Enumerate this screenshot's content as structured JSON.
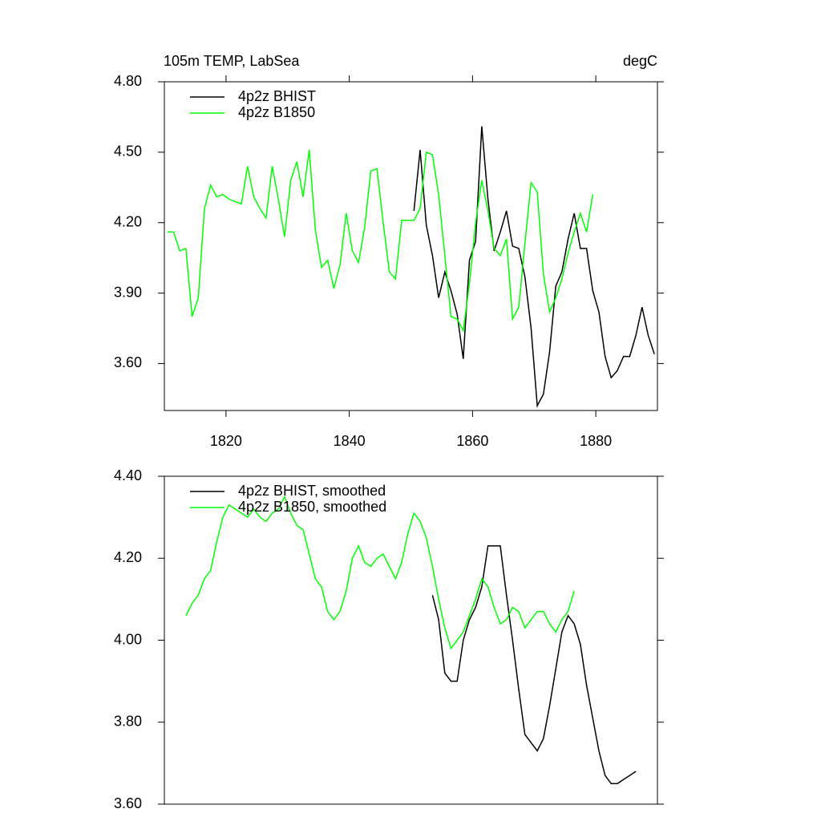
{
  "chart_data": [
    {
      "type": "line",
      "title": "105m TEMP, LabSea",
      "subtitle": "degC",
      "xlim": [
        1810,
        1890
      ],
      "xticks": [
        1820,
        1840,
        1860,
        1880
      ],
      "ylim": [
        3.4,
        4.8
      ],
      "yticks": [
        {
          "value": 4.8,
          "label": "4.80"
        },
        {
          "value": 4.5,
          "label": "4.50"
        },
        {
          "value": 4.2,
          "label": "4.20"
        },
        {
          "value": 3.9,
          "label": "3.90"
        },
        {
          "value": 3.6,
          "label": "3.60"
        }
      ],
      "legend": "upper left",
      "series": [
        {
          "name": "4p2z BHIST",
          "color": "#000000",
          "x": [
            1850.5,
            1851.5,
            1852.5,
            1853.5,
            1854.5,
            1855.5,
            1856.5,
            1857.5,
            1858.5,
            1859.5,
            1860.5,
            1861.5,
            1862.5,
            1863.5,
            1864.5,
            1865.5,
            1866.5,
            1867.5,
            1868.5,
            1869.5,
            1870.5,
            1871.5,
            1872.5,
            1873.5,
            1874.5,
            1875.5,
            1876.5,
            1877.5,
            1878.5,
            1879.5,
            1880.5,
            1881.5,
            1882.5,
            1883.5,
            1884.5,
            1885.5,
            1886.5,
            1887.5,
            1888.5,
            1889.5
          ],
          "values": [
            4.25,
            4.51,
            4.19,
            4.06,
            3.88,
            3.99,
            3.91,
            3.81,
            3.62,
            4.04,
            4.12,
            4.61,
            4.3,
            4.08,
            4.16,
            4.25,
            4.1,
            4.09,
            3.97,
            3.75,
            3.42,
            3.47,
            3.65,
            3.93,
            3.99,
            4.13,
            4.24,
            4.09,
            4.09,
            3.91,
            3.82,
            3.63,
            3.54,
            3.57,
            3.63,
            3.63,
            3.72,
            3.84,
            3.72,
            3.64
          ]
        },
        {
          "name": "4p2z B1850",
          "color": "#00ff00",
          "x": [
            1810.5,
            1811.5,
            1812.5,
            1813.5,
            1814.5,
            1815.5,
            1816.5,
            1817.5,
            1818.5,
            1819.5,
            1820.5,
            1821.5,
            1822.5,
            1823.5,
            1824.5,
            1825.5,
            1826.5,
            1827.5,
            1828.5,
            1829.5,
            1830.5,
            1831.5,
            1832.5,
            1833.5,
            1834.5,
            1835.5,
            1836.5,
            1837.5,
            1838.5,
            1839.5,
            1840.5,
            1841.5,
            1842.5,
            1843.5,
            1844.5,
            1845.5,
            1846.5,
            1847.5,
            1848.5,
            1849.5,
            1850.5,
            1851.5,
            1852.5,
            1853.5,
            1854.5,
            1855.5,
            1856.5,
            1857.5,
            1858.5,
            1859.5,
            1860.5,
            1861.5,
            1862.5,
            1863.5,
            1864.5,
            1865.5,
            1866.5,
            1867.5,
            1868.5,
            1869.5,
            1870.5,
            1871.5,
            1872.5,
            1873.5,
            1874.5,
            1875.5,
            1876.5,
            1877.5,
            1878.5,
            1879.5
          ],
          "values": [
            4.16,
            4.16,
            4.08,
            4.09,
            3.8,
            3.88,
            4.26,
            4.36,
            4.31,
            4.32,
            4.3,
            4.29,
            4.28,
            4.44,
            4.31,
            4.26,
            4.22,
            4.44,
            4.3,
            4.14,
            4.38,
            4.46,
            4.31,
            4.51,
            4.17,
            4.01,
            4.04,
            3.92,
            4.02,
            4.24,
            4.08,
            4.03,
            4.18,
            4.42,
            4.43,
            4.2,
            3.99,
            3.96,
            4.21,
            4.21,
            4.21,
            4.26,
            4.5,
            4.49,
            4.32,
            4.06,
            3.8,
            3.79,
            3.74,
            3.94,
            4.2,
            4.38,
            4.25,
            4.09,
            4.06,
            4.13,
            3.79,
            3.84,
            4.11,
            4.37,
            4.33,
            3.98,
            3.82,
            3.88,
            3.96,
            4.07,
            4.16,
            4.24,
            4.16,
            4.32
          ]
        }
      ]
    },
    {
      "type": "line",
      "xlim": [
        1810,
        1890
      ],
      "ylim": [
        3.6,
        4.4
      ],
      "yticks": [
        {
          "value": 4.4,
          "label": "4.40"
        },
        {
          "value": 4.2,
          "label": "4.20"
        },
        {
          "value": 4.0,
          "label": "4.00"
        },
        {
          "value": 3.8,
          "label": "3.80"
        },
        {
          "value": 3.6,
          "label": "3.60"
        }
      ],
      "legend": "upper left",
      "series": [
        {
          "name": "4p2z BHIST, smoothed",
          "color": "#000000",
          "x": [
            1853.5,
            1854.5,
            1855.5,
            1856.5,
            1857.5,
            1858.5,
            1859.5,
            1860.5,
            1861.5,
            1862.5,
            1863.5,
            1864.5,
            1865.5,
            1866.5,
            1867.5,
            1868.5,
            1869.5,
            1870.5,
            1871.5,
            1872.5,
            1873.5,
            1874.5,
            1875.5,
            1876.5,
            1877.5,
            1878.5,
            1879.5,
            1880.5,
            1881.5,
            1882.5,
            1883.5,
            1884.5,
            1885.5,
            1886.5
          ],
          "values": [
            4.11,
            4.05,
            3.92,
            3.9,
            3.9,
            4.0,
            4.05,
            4.08,
            4.13,
            4.23,
            4.23,
            4.23,
            4.11,
            4.0,
            3.88,
            3.77,
            3.75,
            3.73,
            3.76,
            3.84,
            3.93,
            4.02,
            4.06,
            4.04,
            3.99,
            3.89,
            3.81,
            3.73,
            3.67,
            3.65,
            3.65,
            3.66,
            3.67,
            3.68
          ]
        },
        {
          "name": "4p2z B1850, smoothed",
          "color": "#00ff00",
          "x": [
            1813.5,
            1814.5,
            1815.5,
            1816.5,
            1817.5,
            1818.5,
            1819.5,
            1820.5,
            1821.5,
            1822.5,
            1823.5,
            1824.5,
            1825.5,
            1826.5,
            1827.5,
            1828.5,
            1829.5,
            1830.5,
            1831.5,
            1832.5,
            1833.5,
            1834.5,
            1835.5,
            1836.5,
            1837.5,
            1838.5,
            1839.5,
            1840.5,
            1841.5,
            1842.5,
            1843.5,
            1844.5,
            1845.5,
            1846.5,
            1847.5,
            1848.5,
            1849.5,
            1850.5,
            1851.5,
            1852.5,
            1853.5,
            1854.5,
            1855.5,
            1856.5,
            1857.5,
            1858.5,
            1859.5,
            1860.5,
            1861.5,
            1862.5,
            1863.5,
            1864.5,
            1865.5,
            1866.5,
            1867.5,
            1868.5,
            1869.5,
            1870.5,
            1871.5,
            1872.5,
            1873.5,
            1874.5,
            1875.5,
            1876.5
          ],
          "values": [
            4.06,
            4.09,
            4.11,
            4.15,
            4.17,
            4.24,
            4.3,
            4.33,
            4.32,
            4.31,
            4.3,
            4.32,
            4.3,
            4.29,
            4.31,
            4.32,
            4.35,
            4.31,
            4.28,
            4.27,
            4.21,
            4.15,
            4.13,
            4.07,
            4.05,
            4.07,
            4.12,
            4.2,
            4.23,
            4.19,
            4.18,
            4.2,
            4.21,
            4.18,
            4.15,
            4.19,
            4.26,
            4.31,
            4.29,
            4.25,
            4.18,
            4.1,
            4.03,
            3.98,
            4.0,
            4.02,
            4.06,
            4.1,
            4.15,
            4.13,
            4.08,
            4.04,
            4.05,
            4.08,
            4.07,
            4.03,
            4.05,
            4.07,
            4.07,
            4.04,
            4.02,
            4.05,
            4.07,
            4.12
          ]
        }
      ]
    }
  ]
}
